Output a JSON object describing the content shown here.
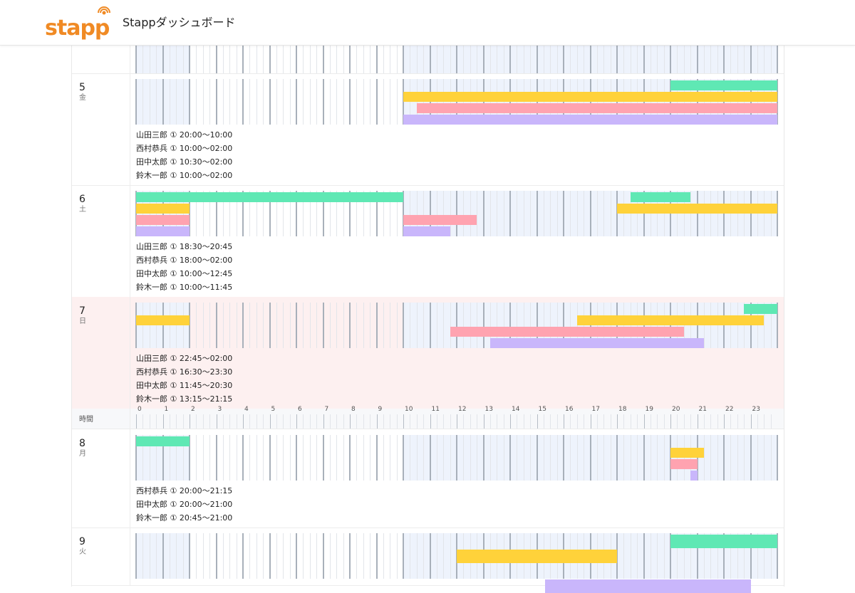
{
  "header": {
    "logo": "stapp",
    "title": "Stappダッシュボード"
  },
  "staff": [
    {
      "name": "山田三郎",
      "color": "#5fe8b4"
    },
    {
      "name": "西村恭兵",
      "color": "#ffd23a"
    },
    {
      "name": "田中太郎",
      "color": "#ffa3b0"
    },
    {
      "name": "鈴木一郎",
      "color": "#c9b6fb"
    }
  ],
  "days_before": [
    {
      "date": "5",
      "weekday": "金",
      "shifts": [
        {
          "name": "山田三郎",
          "mark": "①",
          "time": "20:00〜10:00"
        },
        {
          "name": "西村恭兵",
          "mark": "①",
          "time": "10:00〜02:00"
        },
        {
          "name": "田中太郎",
          "mark": "①",
          "time": "10:30〜02:00"
        },
        {
          "name": "鈴木一郎",
          "mark": "①",
          "time": "10:00〜02:00"
        }
      ]
    },
    {
      "date": "6",
      "weekday": "土",
      "shifts": [
        {
          "name": "山田三郎",
          "mark": "①",
          "time": "18:30〜20:45"
        },
        {
          "name": "西村恭兵",
          "mark": "①",
          "time": "18:00〜02:00"
        },
        {
          "name": "田中太郎",
          "mark": "①",
          "time": "10:00〜12:45"
        },
        {
          "name": "鈴木一郎",
          "mark": "①",
          "time": "10:00〜11:45"
        }
      ]
    },
    {
      "date": "7",
      "weekday": "日",
      "highlight": true,
      "shifts": [
        {
          "name": "山田三郎",
          "mark": "①",
          "time": "22:45〜02:00"
        },
        {
          "name": "西村恭兵",
          "mark": "①",
          "time": "16:30〜23:30"
        },
        {
          "name": "田中太郎",
          "mark": "①",
          "time": "11:45〜20:30"
        },
        {
          "name": "鈴木一郎",
          "mark": "①",
          "time": "13:15〜21:15"
        }
      ]
    }
  ],
  "axis": {
    "label": "時間",
    "hours": [
      0,
      1,
      2,
      3,
      4,
      5,
      6,
      7,
      8,
      9,
      10,
      11,
      12,
      13,
      14,
      15,
      16,
      17,
      18,
      19,
      20,
      21,
      22,
      23
    ]
  },
  "days_after": [
    {
      "date": "8",
      "weekday": "月",
      "shifts": [
        {
          "name": "西村恭兵",
          "mark": "①",
          "time": "20:00〜21:15"
        },
        {
          "name": "田中太郎",
          "mark": "①",
          "time": "20:00〜21:00"
        },
        {
          "name": "鈴木一郎",
          "mark": "①",
          "time": "20:45〜21:00"
        }
      ]
    },
    {
      "date": "9",
      "weekday": "火",
      "shifts": []
    }
  ]
}
